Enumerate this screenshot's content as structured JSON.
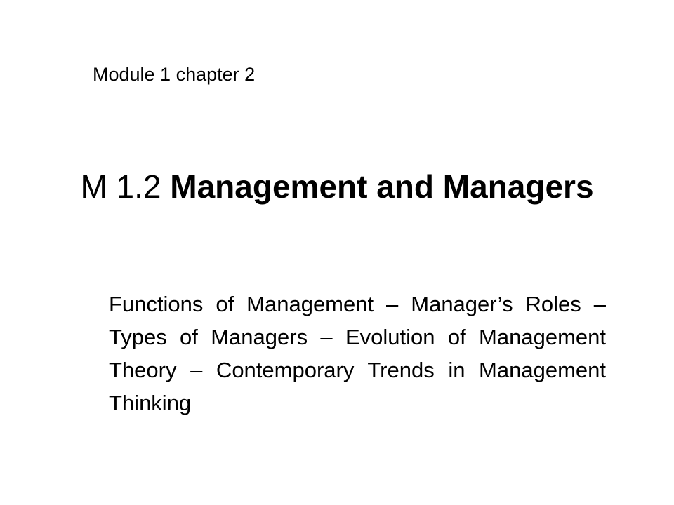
{
  "slide": {
    "module_label": "Module 1 chapter 2",
    "title_prefix": "M 1.2 ",
    "title_main": "Management and Managers",
    "body_text": "Functions of Management – Manager’s Roles – Types of Managers – Evolution of Management Theory – Contemporary Trends in Management Thinking"
  }
}
